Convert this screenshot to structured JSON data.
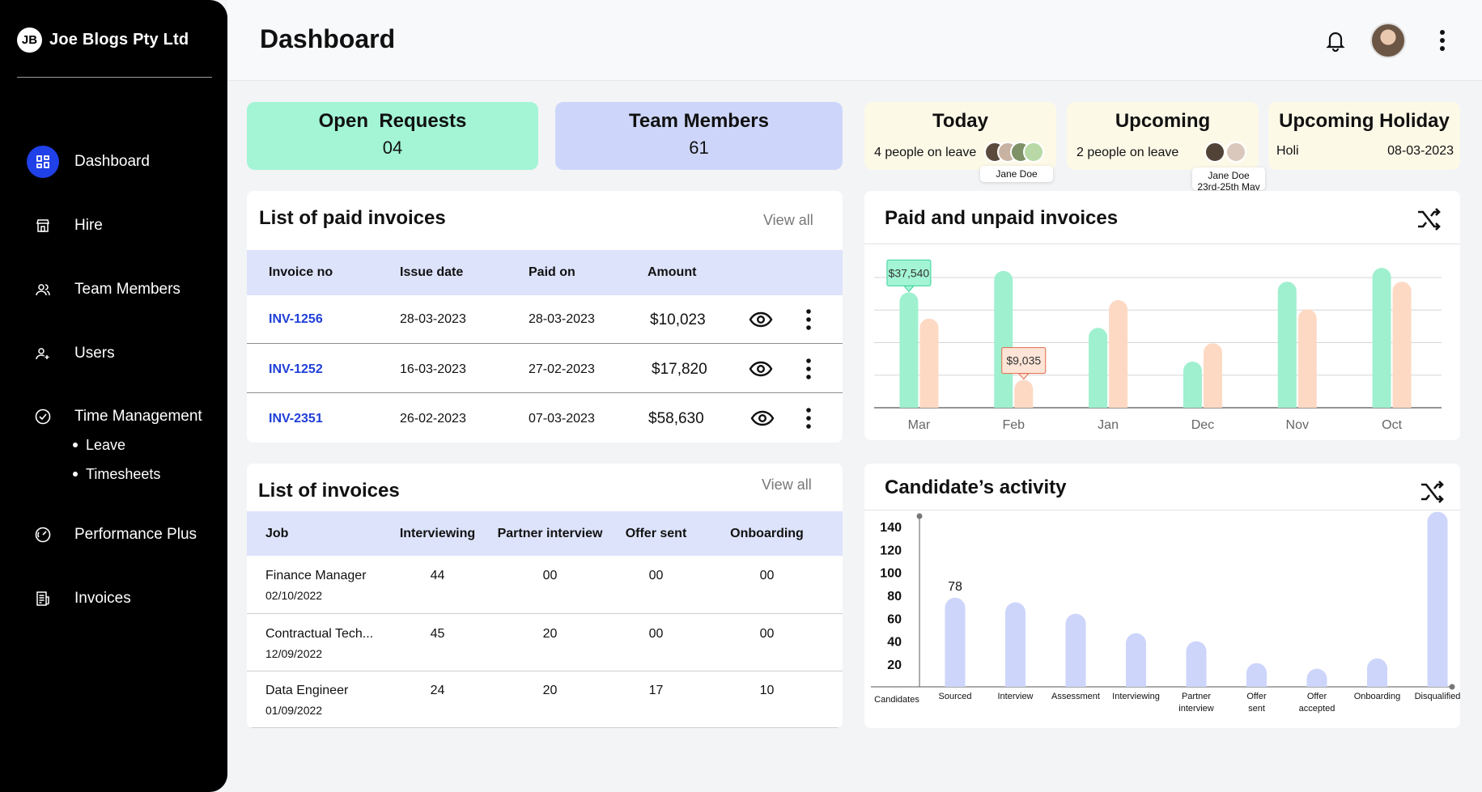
{
  "brand": {
    "logo": "JB",
    "name": "Joe Blogs Pty Ltd"
  },
  "nav": {
    "items": [
      {
        "label": "Dashboard",
        "icon": "grid-icon"
      },
      {
        "label": "Hire",
        "icon": "store-icon"
      },
      {
        "label": "Team Members",
        "icon": "team-icon"
      },
      {
        "label": "Users",
        "icon": "user-add-icon"
      },
      {
        "label": "Time Management",
        "icon": "check-circle-icon"
      },
      {
        "label": "Performance Plus",
        "icon": "gauge-icon"
      },
      {
        "label": "Invoices",
        "icon": "receipt-icon"
      }
    ],
    "time_sub": [
      "Leave",
      "Timesheets"
    ]
  },
  "header": {
    "title": "Dashboard"
  },
  "stats": {
    "open_requests": {
      "label": "Open  Requests",
      "value": "04"
    },
    "team_members": {
      "label": "Team Members",
      "value": "61"
    }
  },
  "leave": {
    "today": {
      "title": "Today",
      "sub": "4 people on leave",
      "tooltip": "Jane Doe"
    },
    "upcoming": {
      "title": "Upcoming",
      "sub": "2 people on leave",
      "tooltip_name": "Jane Doe",
      "tooltip_dates": "23rd-25th May"
    },
    "holiday": {
      "title": "Upcoming Holiday",
      "name": "Holi",
      "date": "08-03-2023"
    }
  },
  "paid_invoices": {
    "title": "List of paid invoices",
    "view_all": "View all",
    "headers": [
      "Invoice no",
      "Issue date",
      "Paid on",
      "Amount"
    ],
    "rows": [
      {
        "no": "INV-1256",
        "issue": "28-03-2023",
        "paid": "28-03-2023",
        "amount": "$10,023"
      },
      {
        "no": "INV-1252",
        "issue": "16-03-2023",
        "paid": "27-02-2023",
        "amount": "$17,820"
      },
      {
        "no": "INV-2351",
        "issue": "26-02-2023",
        "paid": "07-03-2023",
        "amount": "$58,630"
      }
    ]
  },
  "invoices": {
    "title": "List of invoices",
    "view_all": "View all",
    "headers": [
      "Job",
      "Interviewing",
      "Partner interview",
      "Offer sent",
      "Onboarding"
    ],
    "rows": [
      {
        "job": "Finance Manager",
        "date": "02/10/2022",
        "interviewing": "44",
        "partner": "00",
        "offer": "00",
        "onboarding": "00"
      },
      {
        "job": "Contractual Tech...",
        "date": "12/09/2022",
        "interviewing": "45",
        "partner": "20",
        "offer": "00",
        "onboarding": "00"
      },
      {
        "job": "Data Engineer",
        "date": "01/09/2022",
        "interviewing": "24",
        "partner": "20",
        "offer": "17",
        "onboarding": "10"
      }
    ]
  },
  "chart_data": [
    {
      "type": "bar",
      "title": "Paid and unpaid invoices",
      "categories": [
        "Mar",
        "Feb",
        "Jan",
        "Dec",
        "Nov",
        "Oct"
      ],
      "series": [
        {
          "values": [
            37540,
            44500,
            26000,
            15000,
            41000,
            45500
          ],
          "color": "#9ff0cf"
        },
        {
          "values": [
            29000,
            9035,
            35000,
            21000,
            32000,
            41000
          ],
          "color": "#fdd9c4"
        }
      ],
      "annotations": [
        {
          "category": "Mar",
          "series": 0,
          "label": "$37,540"
        },
        {
          "category": "Feb",
          "series": 1,
          "label": "$9,035"
        }
      ],
      "ylim": [
        0,
        50000
      ],
      "grid": true
    },
    {
      "type": "bar",
      "title": "Candidate’s activity",
      "xlabel": "Candidates",
      "categories": [
        "Sourced",
        "Interview",
        "Assessment",
        "Interviewing",
        "Partner interview",
        "Offer sent",
        "Offer accepted",
        "Onboarding",
        "Disqualified"
      ],
      "values": [
        78,
        74,
        64,
        47,
        40,
        21,
        16,
        25,
        153
      ],
      "data_labels": [
        {
          "category": "Sourced",
          "label": "78"
        }
      ],
      "yticks": [
        "140",
        "120",
        "100",
        "80",
        "60",
        "40",
        "20"
      ],
      "ylim": [
        0,
        160
      ],
      "color": "#cdd5fb"
    }
  ]
}
